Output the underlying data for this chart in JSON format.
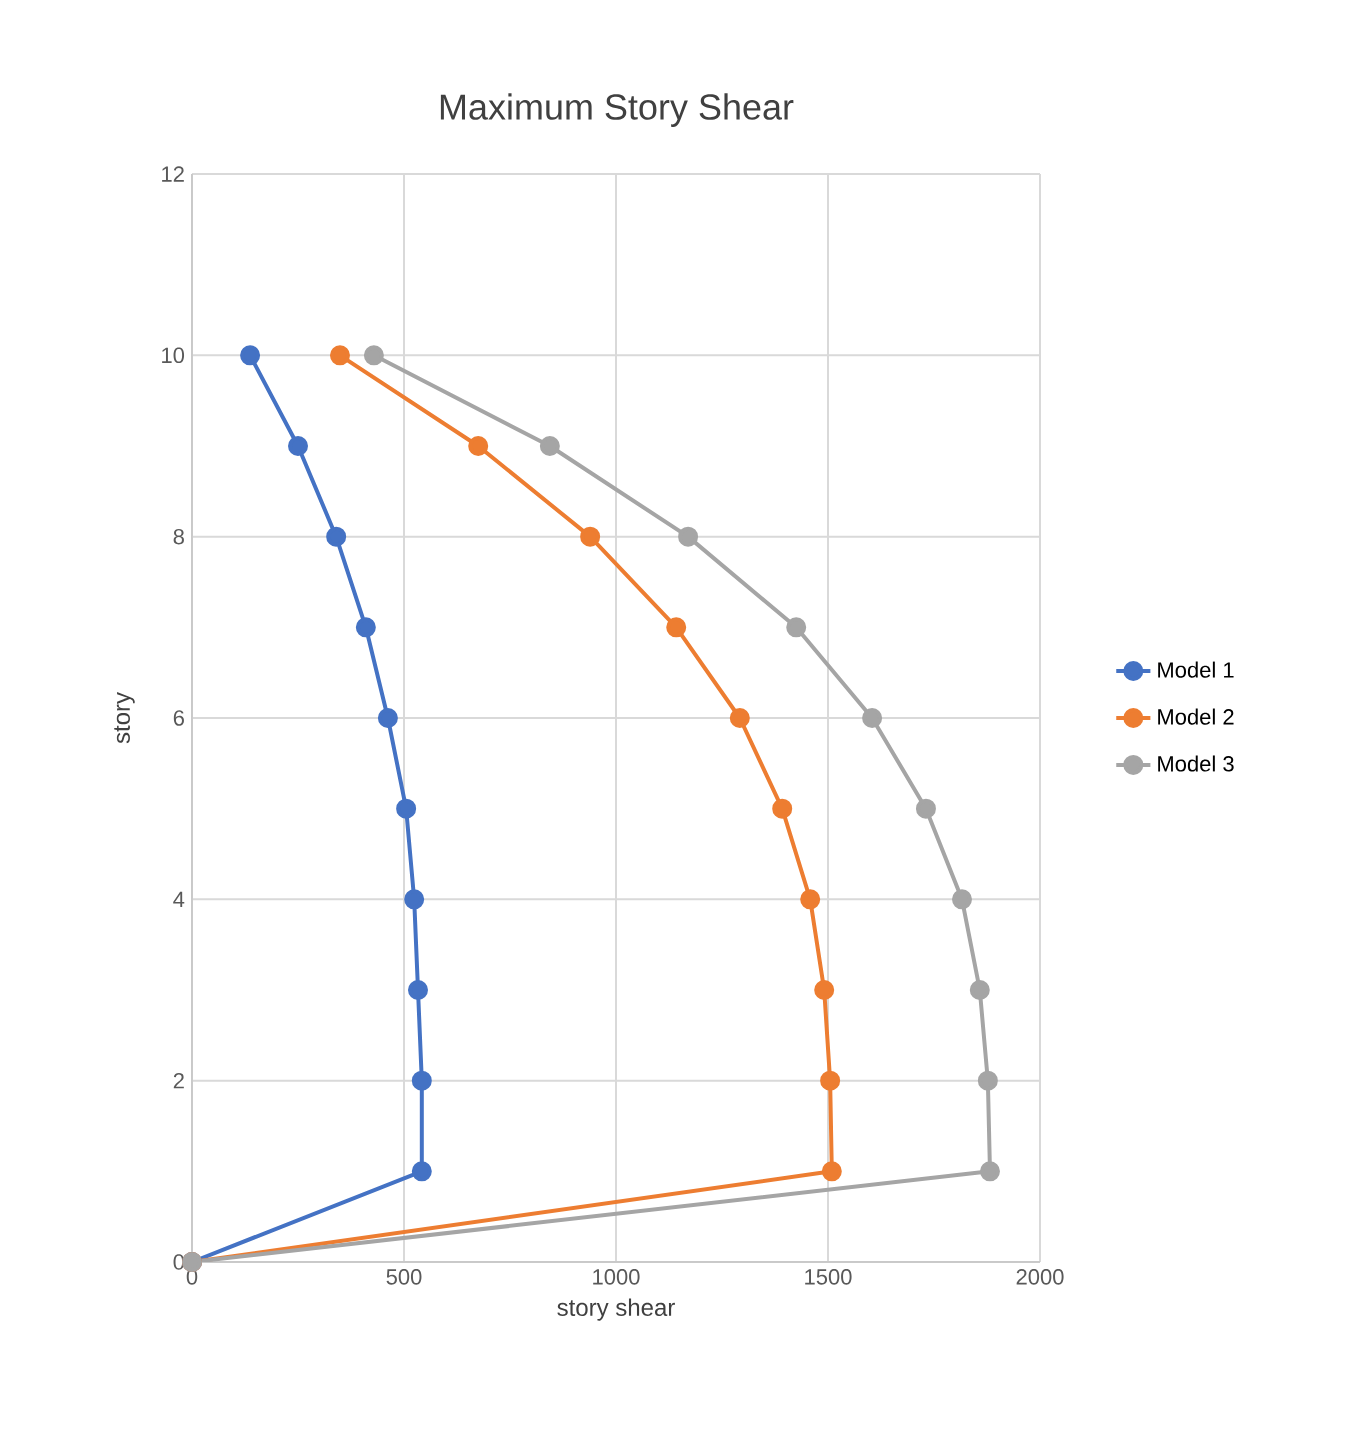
{
  "chart_data": {
    "type": "line",
    "title": "Maximum Story Shear",
    "xlabel": "story shear",
    "ylabel": "story",
    "xlim": [
      0,
      2000
    ],
    "xticks": [
      0,
      500,
      1000,
      1500,
      2000
    ],
    "ylim": [
      0,
      12
    ],
    "yticks": [
      0,
      2,
      4,
      6,
      8,
      10,
      12
    ],
    "grid": true,
    "legend": "right",
    "marker": "circle",
    "line_style": "solid",
    "series": [
      {
        "name": "Model 1",
        "color": "#4472c4",
        "x": [
          0,
          542,
          542,
          533,
          524,
          505,
          462,
          410,
          340,
          250,
          137
        ],
        "values": [
          0,
          1,
          2,
          3,
          4,
          5,
          6,
          7,
          8,
          9,
          10
        ]
      },
      {
        "name": "Model 2",
        "color": "#ed7d31",
        "x": [
          0,
          1509,
          1505,
          1491,
          1458,
          1392,
          1292,
          1142,
          939,
          675,
          349
        ],
        "values": [
          0,
          1,
          2,
          3,
          4,
          5,
          6,
          7,
          8,
          9,
          10
        ]
      },
      {
        "name": "Model 3",
        "color": "#a5a5a5",
        "x": [
          0,
          1882,
          1877,
          1858,
          1816,
          1731,
          1604,
          1425,
          1170,
          844,
          429
        ],
        "values": [
          0,
          1,
          2,
          3,
          4,
          5,
          6,
          7,
          8,
          9,
          10
        ]
      }
    ]
  }
}
